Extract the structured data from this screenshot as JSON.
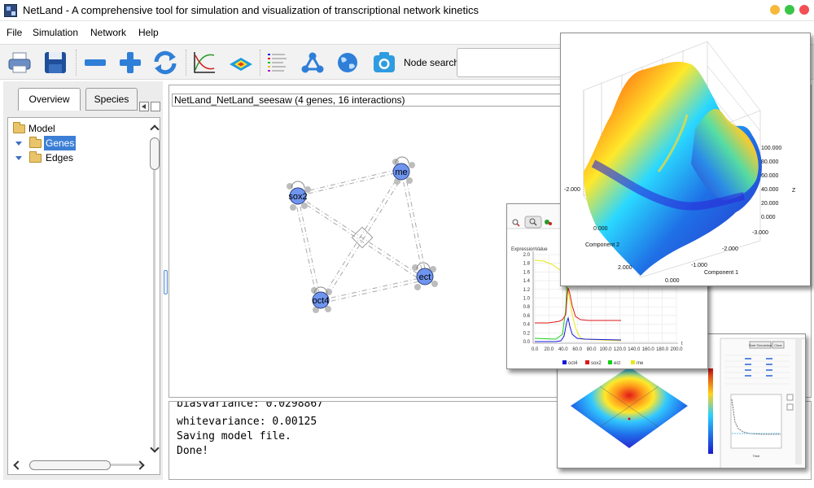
{
  "window": {
    "title": "NetLand - A comprehensive tool for simulation and visualization of transcriptional network kinetics"
  },
  "menu": [
    {
      "label": "File"
    },
    {
      "label": "Simulation"
    },
    {
      "label": "Network"
    },
    {
      "label": "Help"
    }
  ],
  "toolbar": {
    "buttons": [
      "print-icon",
      "save-icon",
      "remove-icon",
      "add-icon",
      "refresh-icon",
      "plot-icon",
      "landscape-icon",
      "legend-icon",
      "network-icon",
      "globe-icon",
      "camera-icon"
    ],
    "node_search_label": "Node search:",
    "node_search_value": ""
  },
  "left_panel": {
    "tabs": [
      {
        "label": "Overview"
      },
      {
        "label": "Species"
      }
    ],
    "tree": {
      "root": "Model",
      "children": [
        {
          "label": "Genes",
          "selected": true
        },
        {
          "label": "Edges"
        }
      ]
    }
  },
  "network": {
    "title": "NetLand_NetLand_seesaw (4 genes, 16 interactions)",
    "node_color": "#6f95ef",
    "nodes": [
      {
        "label": "sox2"
      },
      {
        "label": "me"
      },
      {
        "label": "ect"
      },
      {
        "label": "oct4"
      }
    ]
  },
  "console": {
    "lines": [
      "biasvariance: 0.0298867",
      "whitevariance: 0.00125",
      "Saving model file.",
      "Done!"
    ]
  },
  "overlay_line_chart": {
    "ylabel": "ExpressionValue",
    "y_ticks": [
      "2.0",
      "1.8",
      "1.6",
      "1.4",
      "1.2",
      "1.0",
      "0.8",
      "0.6",
      "0.4",
      "0.2",
      "0.0"
    ],
    "x_ticks": [
      "0.0",
      "20.0",
      "40.0",
      "60.0",
      "80.0",
      "100.0",
      "120.0",
      "140.0",
      "160.0",
      "180.0",
      "200.0"
    ],
    "x_end_label": "t",
    "legend": [
      {
        "name": "oct4",
        "color": "#1515e0"
      },
      {
        "name": "sox2",
        "color": "#e01515"
      },
      {
        "name": "ect",
        "color": "#15d015"
      },
      {
        "name": "me",
        "color": "#e8e815"
      }
    ]
  },
  "overlay_surface": {
    "z_ticks": [
      "100.000",
      "80.000",
      "60.000",
      "40.000",
      "20.000",
      "0.000"
    ],
    "z_label": "Z",
    "component2_ticks": [
      "-2.000",
      "0.000",
      "2.000"
    ],
    "component2_label": "Component 2",
    "component1_ticks": [
      "-3.000",
      "-2.000",
      "-1.000",
      "0.000"
    ],
    "component1_label": "Component 1"
  },
  "overlay_heat": {
    "buttons": [
      "Start Simulation",
      "Clear"
    ],
    "x_label": "Time"
  }
}
